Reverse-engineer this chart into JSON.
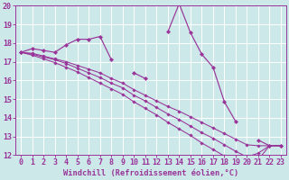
{
  "xlabel": "Windchill (Refroidissement éolien,°C)",
  "x_values": [
    0,
    1,
    2,
    3,
    4,
    5,
    6,
    7,
    8,
    9,
    10,
    11,
    12,
    13,
    14,
    15,
    16,
    17,
    18,
    19,
    20,
    21,
    22,
    23
  ],
  "line1": [
    17.5,
    17.7,
    17.6,
    17.5,
    17.9,
    18.2,
    18.2,
    18.35,
    17.1,
    null,
    16.4,
    16.1,
    null,
    18.6,
    20.1,
    18.55,
    17.4,
    16.7,
    14.85,
    13.8,
    null,
    12.8,
    12.5,
    12.5
  ],
  "line2": [
    17.5,
    17.45,
    17.3,
    17.15,
    17.0,
    16.8,
    16.6,
    16.4,
    16.1,
    15.85,
    15.5,
    15.2,
    14.9,
    14.6,
    14.35,
    14.05,
    13.75,
    13.45,
    13.15,
    12.85,
    12.55,
    12.5,
    12.5,
    12.5
  ],
  "line3": [
    17.5,
    17.4,
    17.25,
    17.1,
    16.9,
    16.65,
    16.4,
    16.15,
    15.85,
    15.6,
    15.2,
    14.9,
    14.55,
    14.2,
    13.9,
    13.55,
    13.2,
    12.9,
    12.55,
    12.2,
    11.9,
    12.1,
    12.5,
    12.5
  ],
  "line4": [
    17.5,
    17.35,
    17.15,
    16.95,
    16.7,
    16.45,
    16.15,
    15.85,
    15.55,
    15.25,
    14.85,
    14.5,
    14.15,
    13.75,
    13.4,
    13.05,
    12.65,
    12.3,
    11.95,
    11.6,
    11.35,
    11.75,
    12.5,
    12.5
  ],
  "line_color": "#993399",
  "bg_color": "#cce8e8",
  "grid_color": "#aadddd",
  "ylim": [
    12,
    20
  ],
  "yticks": [
    12,
    13,
    14,
    15,
    16,
    17,
    18,
    19,
    20
  ],
  "xticks": [
    0,
    1,
    2,
    3,
    4,
    5,
    6,
    7,
    8,
    9,
    10,
    11,
    12,
    13,
    14,
    15,
    16,
    17,
    18,
    19,
    20,
    21,
    22,
    23
  ],
  "tick_fontsize": 6.0,
  "xlabel_fontsize": 6.2
}
